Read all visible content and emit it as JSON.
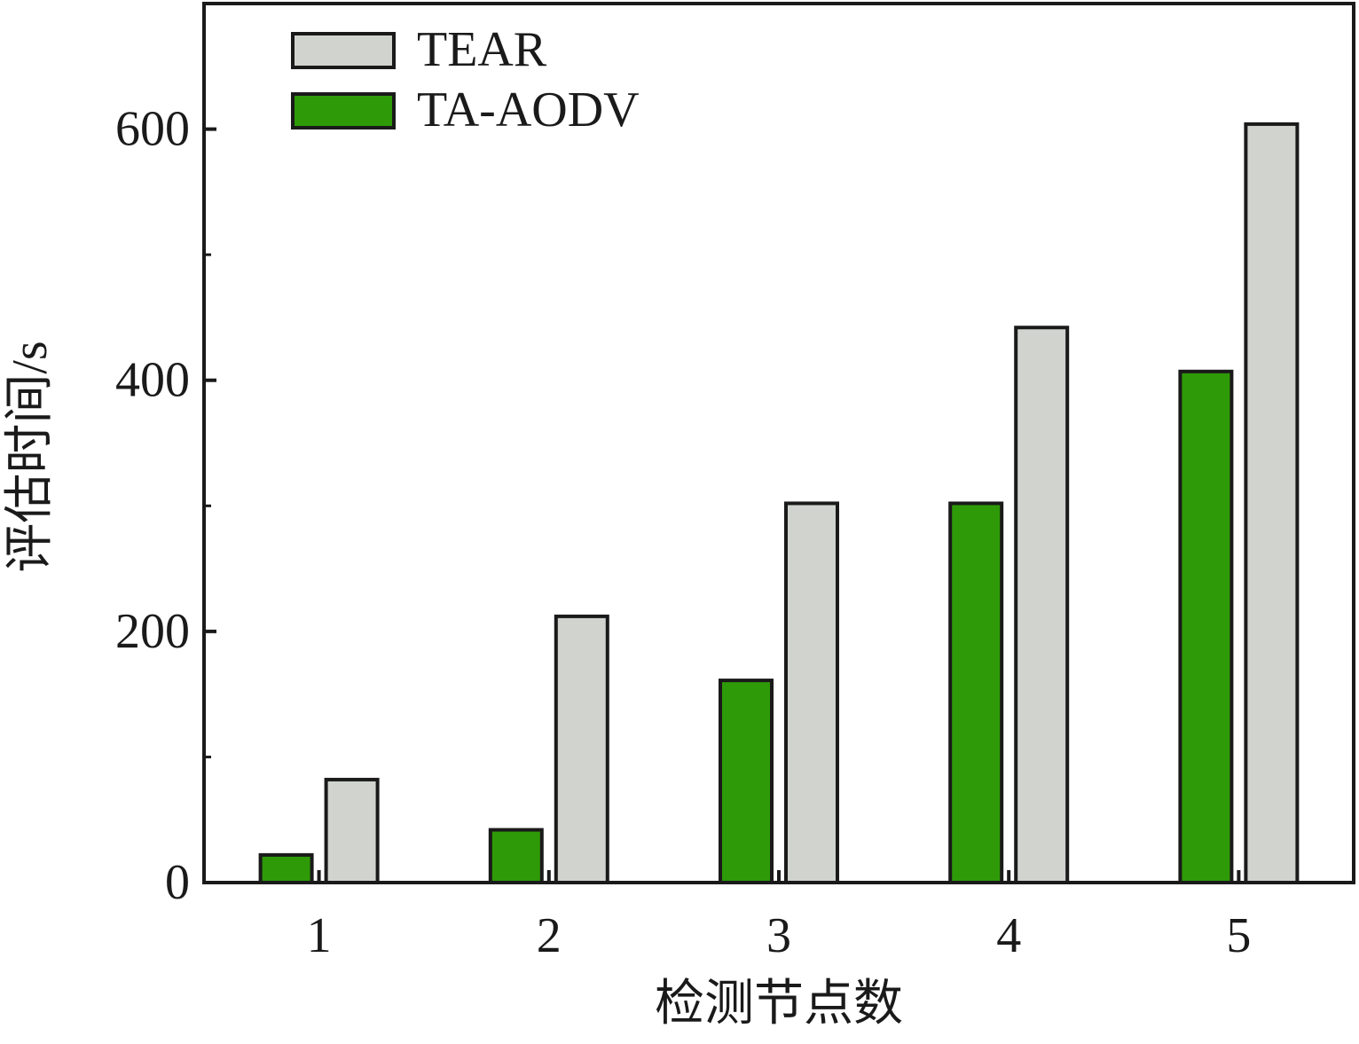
{
  "chart_data": {
    "type": "bar",
    "title": "",
    "xlabel": "检测节点数",
    "ylabel": "评估时间/s",
    "categories": [
      "1",
      "2",
      "3",
      "4",
      "5"
    ],
    "series": [
      {
        "name": "TA-AODV",
        "values": [
          22,
          42,
          161,
          302,
          407
        ],
        "color": "#2e9a08"
      },
      {
        "name": "TEAR",
        "values": [
          82,
          212,
          302,
          442,
          604
        ],
        "color": "#d0d3ce"
      }
    ],
    "ylim": [
      0,
      700
    ],
    "yticks": [
      0,
      200,
      400,
      600
    ],
    "yticks_minor": [
      100,
      300,
      500
    ],
    "legend_order": [
      "TEAR",
      "TA-AODV"
    ],
    "legend_position": "top-left",
    "grid": false
  }
}
